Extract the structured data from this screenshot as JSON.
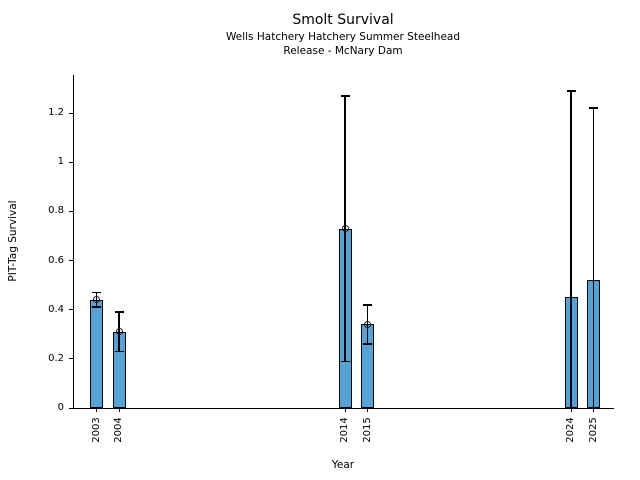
{
  "chart_data": {
    "type": "bar",
    "title": "Smolt Survival",
    "subtitle": [
      "Wells Hatchery Hatchery Summer Steelhead",
      "Release - McNary Dam"
    ],
    "xlabel": "Year",
    "ylabel": "PIT-Tag Survival",
    "xlim": [
      2002,
      2025.9
    ],
    "ylim": [
      0,
      1.355
    ],
    "grid": false,
    "legend": null,
    "bar_color": "#55a3d6",
    "bar_edge_color": "#000000",
    "error_color": "#000000",
    "yticks": [
      {
        "value": 0,
        "label": "0"
      },
      {
        "value": 0.2,
        "label": "0.2"
      },
      {
        "value": 0.4,
        "label": "0.4"
      },
      {
        "value": 0.6,
        "label": "0.6"
      },
      {
        "value": 0.8,
        "label": "0.8"
      },
      {
        "value": 1,
        "label": "1"
      },
      {
        "value": 1.2,
        "label": "1.2"
      }
    ],
    "points": [
      {
        "year": "2003",
        "x": 2003,
        "value": 0.44,
        "ci_low": 0.41,
        "ci_high": 0.47,
        "marker": true
      },
      {
        "year": "2004",
        "x": 2004,
        "value": 0.31,
        "ci_low": 0.23,
        "ci_high": 0.39,
        "marker": true
      },
      {
        "year": "2014",
        "x": 2014,
        "value": 0.73,
        "ci_low": 0.19,
        "ci_high": 1.27,
        "marker": true
      },
      {
        "year": "2015",
        "x": 2015,
        "value": 0.34,
        "ci_low": 0.26,
        "ci_high": 0.42,
        "marker": true
      },
      {
        "year": "2024",
        "x": 2024,
        "value": 0.45,
        "ci_low": 0.0,
        "ci_high": 1.29,
        "marker": false
      },
      {
        "year": "2025",
        "x": 2025,
        "value": 0.52,
        "ci_low": 0.0,
        "ci_high": 1.22,
        "marker": false
      }
    ]
  }
}
